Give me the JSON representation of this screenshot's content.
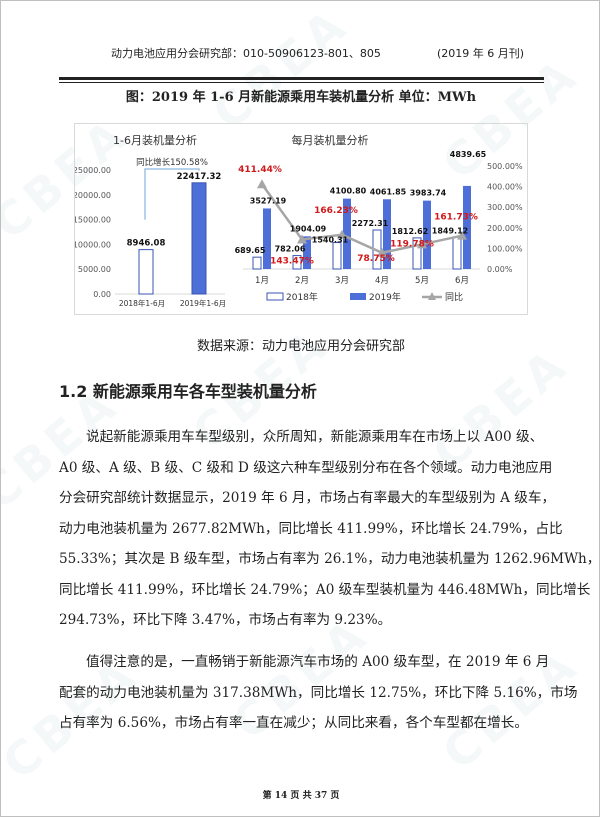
{
  "watermark": "CBEA",
  "header": {
    "left": "动力电池应用分会研究部：010-50906123-801、805",
    "right": "(2019 年 6 月刊)"
  },
  "figure_title": "图：2019 年 1-6 月新能源乘用车装机量分析    单位：MWh",
  "chart_data": [
    {
      "type": "bar",
      "title": "1-6月装机量分析",
      "categories": [
        "2018年1-6月",
        "2019年1-6月"
      ],
      "values": [
        8946.08,
        22417.32
      ],
      "ylim": [
        0,
        25000
      ],
      "yticks": [
        "0.00",
        "5000.00",
        "10000.00",
        "15000.00",
        "20000.00",
        "25000.00"
      ],
      "annotation": "同比增长150.58%",
      "colors": [
        "#ffffff",
        "#4f6fd8"
      ]
    },
    {
      "type": "bar+line",
      "title": "每月装机量分析",
      "categories": [
        "1月",
        "2月",
        "3月",
        "4月",
        "5月",
        "6月"
      ],
      "series": [
        {
          "name": "2018年",
          "type": "bar",
          "values": [
            689.65,
            782.06,
            1540.31,
            2272.31,
            1812.62,
            1849.12
          ],
          "color": "#ffffff"
        },
        {
          "name": "2019年",
          "type": "bar",
          "values": [
            3527.19,
            1904.09,
            4100.8,
            4061.85,
            3983.74,
            4839.65
          ],
          "color": "#4f6fd8"
        },
        {
          "name": "同比",
          "type": "line",
          "axis": "right",
          "values": [
            411.44,
            143.47,
            166.23,
            78.75,
            119.78,
            161.73
          ],
          "color": "#a6a6a6",
          "label_color": "#d0191b"
        }
      ],
      "y2lim": [
        0,
        500
      ],
      "y2ticks": [
        "0.00%",
        "100.00%",
        "200.00%",
        "300.00%",
        "400.00%",
        "500.00%"
      ],
      "legend": "bottom"
    }
  ],
  "source": "数据来源：动力电池应用分会研究部",
  "heading": "1.2 新能源乘用车各车型装机量分析",
  "paragraphs": [
    [
      "说起新能源乘用车车型级别，众所周知，新能源乘用车在市场上以 A00 级、",
      "A0 级、A 级、B 级、C 级和 D 级这六种车型级别分布在各个领域。动力电池应用",
      "分会研究部统计数据显示，2019 年 6 月，市场占有率最大的车型级别为 A 级车，",
      "动力电池装机量为 2677.82MWh，同比增长 411.99%，环比增长 24.79%，占比",
      "55.33%；其次是 B 级车型，市场占有率为 26.1%，动力电池装机量为 1262.96MWh，",
      "同比增长 411.99%，环比增长 24.79%；A0 级车型装机量为 446.48MWh，同比增长",
      "294.73%，环比下降 3.47%，市场占有率为 9.23%。"
    ],
    [
      "值得注意的是，一直畅销于新能源汽车市场的 A00 级车型，在 2019 年 6 月",
      "配套的动力电池装机量为 317.38MWh，同比增长 12.75%，环比下降 5.16%，市场",
      "占有率为 6.56%，市场占有率一直在减少；从同比来看，各个车型都在增长。"
    ]
  ],
  "footer": "第 14 页 共 37 页"
}
